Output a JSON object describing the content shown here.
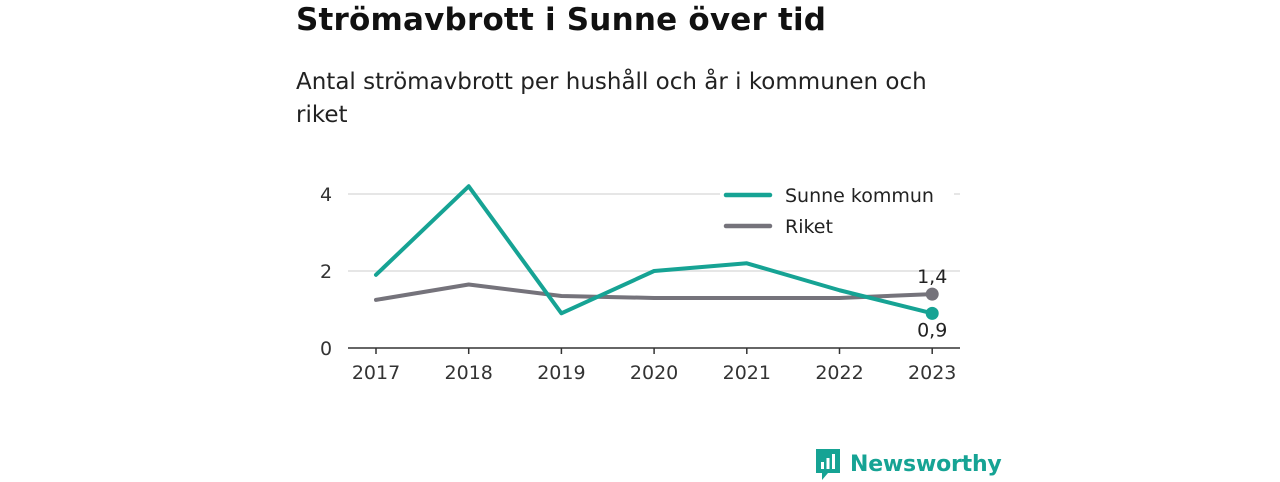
{
  "title": "Strömavbrott i Sunne över tid",
  "subtitle": "Antal strömavbrott per hushåll och år i kommunen och riket",
  "brand": {
    "name": "Newsworthy",
    "icon": "newsworthy-logo-icon",
    "color": "#16a394"
  },
  "chart_data": {
    "type": "line",
    "x": [
      "2017",
      "2018",
      "2019",
      "2020",
      "2021",
      "2022",
      "2023"
    ],
    "series": [
      {
        "name": "Sunne kommun",
        "color": "#16a394",
        "values": [
          1.9,
          4.2,
          0.9,
          2.0,
          2.2,
          1.5,
          0.9
        ],
        "end_label": "0,9"
      },
      {
        "name": "Riket",
        "color": "#75737b",
        "values": [
          1.25,
          1.65,
          1.35,
          1.3,
          1.3,
          1.3,
          1.4
        ],
        "end_label": "1,4"
      }
    ],
    "yticks": [
      "0",
      "2",
      "4"
    ],
    "ylim": [
      0,
      4.6
    ],
    "grid": true,
    "legend": "top-right"
  }
}
